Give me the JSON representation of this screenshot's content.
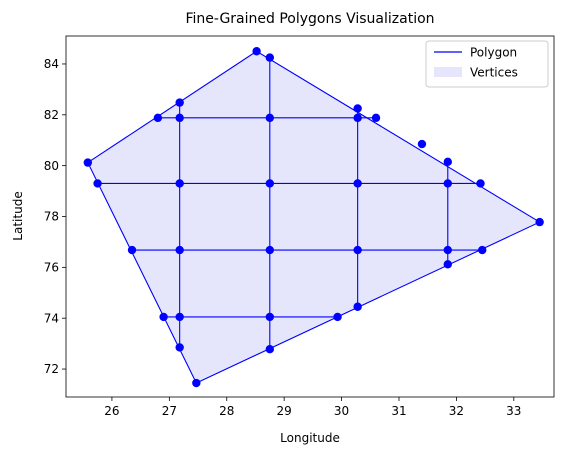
{
  "chart_data": {
    "type": "scatter",
    "title": "Fine-Grained Polygons Visualization",
    "xlabel": "Longitude",
    "ylabel": "Latitude",
    "xlim": [
      25.2,
      33.7
    ],
    "ylim": [
      70.9,
      85.1
    ],
    "xticks": [
      26,
      27,
      28,
      29,
      30,
      31,
      32,
      33
    ],
    "yticks": [
      72,
      74,
      76,
      78,
      80,
      82,
      84
    ],
    "grid": false,
    "legend": {
      "placement": "top-right",
      "entries": [
        {
          "label": "Polygon",
          "marker": "line"
        },
        {
          "label": "Vertices",
          "marker": "patch"
        }
      ]
    },
    "colors": {
      "line": "#0000ff",
      "fill": "#e5e5fc",
      "point": "#0000ff"
    },
    "outer_polygon": [
      [
        25.58,
        80.12
      ],
      [
        28.52,
        84.5
      ],
      [
        33.45,
        77.78
      ],
      [
        27.47,
        71.45
      ]
    ],
    "grid_lines": [
      [
        [
          27.18,
          82.48
        ],
        [
          27.18,
          72.85
        ]
      ],
      [
        [
          28.75,
          84.25
        ],
        [
          28.75,
          72.78
        ]
      ],
      [
        [
          30.28,
          82.25
        ],
        [
          30.28,
          74.45
        ]
      ],
      [
        [
          31.85,
          80.15
        ],
        [
          31.85,
          76.12
        ]
      ],
      [
        [
          26.8,
          81.88
        ],
        [
          30.6,
          81.88
        ]
      ],
      [
        [
          25.75,
          79.3
        ],
        [
          32.42,
          79.3
        ]
      ],
      [
        [
          26.35,
          76.68
        ],
        [
          32.45,
          76.68
        ]
      ],
      [
        [
          26.9,
          74.05
        ],
        [
          29.93,
          74.05
        ]
      ]
    ],
    "vertices": [
      [
        25.58,
        80.12
      ],
      [
        28.52,
        84.5
      ],
      [
        28.75,
        84.25
      ],
      [
        27.18,
        82.48
      ],
      [
        26.8,
        81.88
      ],
      [
        27.18,
        81.88
      ],
      [
        28.75,
        81.88
      ],
      [
        30.28,
        81.88
      ],
      [
        30.28,
        82.25
      ],
      [
        30.6,
        81.88
      ],
      [
        31.4,
        80.85
      ],
      [
        31.85,
        80.15
      ],
      [
        25.75,
        79.3
      ],
      [
        27.18,
        79.3
      ],
      [
        28.75,
        79.3
      ],
      [
        30.28,
        79.3
      ],
      [
        31.85,
        79.3
      ],
      [
        32.42,
        79.3
      ],
      [
        33.45,
        77.78
      ],
      [
        26.35,
        76.68
      ],
      [
        27.18,
        76.68
      ],
      [
        28.75,
        76.68
      ],
      [
        30.28,
        76.68
      ],
      [
        31.85,
        76.68
      ],
      [
        32.45,
        76.68
      ],
      [
        31.85,
        76.12
      ],
      [
        30.28,
        74.45
      ],
      [
        29.93,
        74.05
      ],
      [
        28.75,
        74.05
      ],
      [
        27.18,
        74.05
      ],
      [
        26.9,
        74.05
      ],
      [
        27.18,
        72.85
      ],
      [
        28.75,
        72.78
      ],
      [
        27.47,
        71.45
      ]
    ]
  }
}
